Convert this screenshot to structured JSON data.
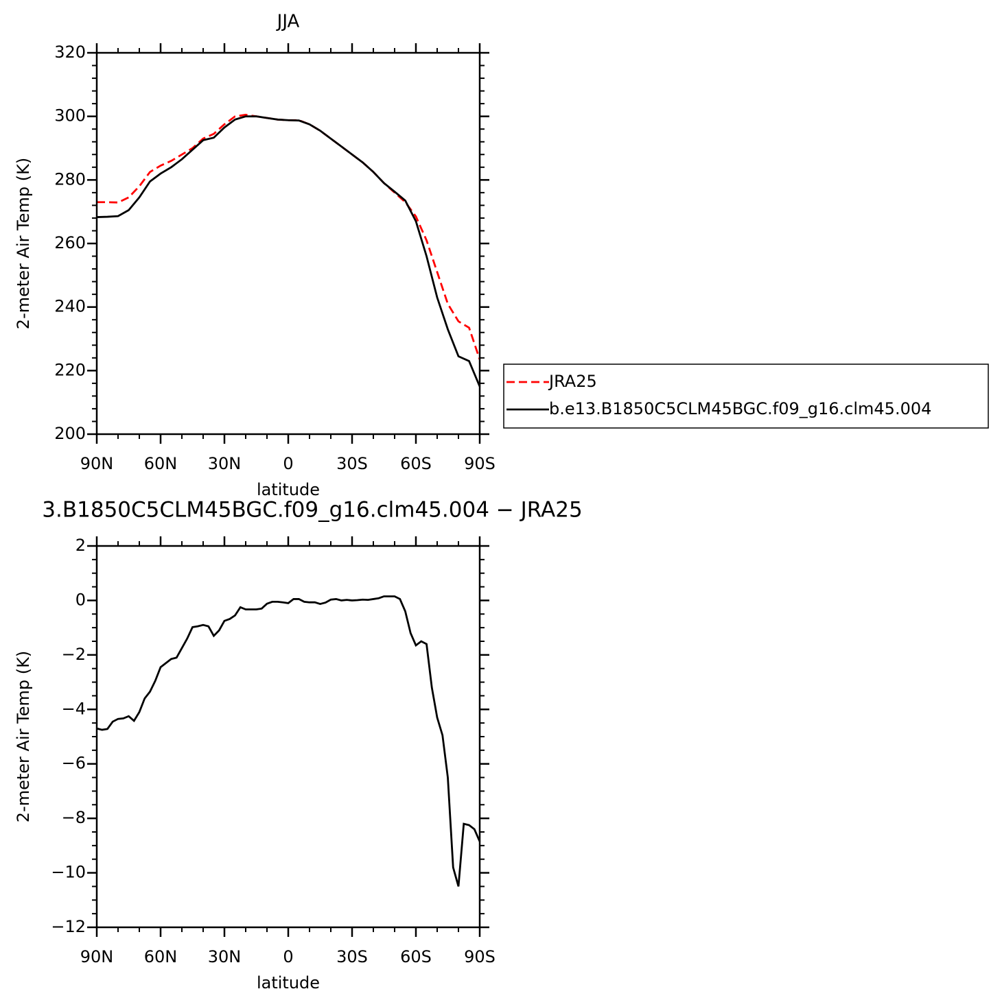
{
  "chart_data": [
    {
      "type": "line",
      "title": "JJA",
      "x_label": "latitude",
      "y_label": "2-meter Air Temp (K)",
      "x": [
        90,
        85,
        80,
        75,
        70,
        65,
        60,
        55,
        50,
        45,
        40,
        35,
        30,
        25,
        20,
        15,
        10,
        5,
        0,
        -5,
        -10,
        -15,
        -20,
        -25,
        -30,
        -35,
        -40,
        -45,
        -50,
        -55,
        -60,
        -65,
        -70,
        -75,
        -80,
        -85,
        -90
      ],
      "series": [
        {
          "name": "JRA25",
          "color": "#ff0000",
          "line_style": "dashed",
          "values": [
            273,
            273,
            272.9,
            274.5,
            278,
            282.5,
            284.5,
            286,
            288,
            290,
            293,
            294.5,
            297.5,
            300,
            300.5,
            300,
            299.5,
            299,
            298.8,
            298.8,
            297.5,
            295.5,
            293,
            290.5,
            288,
            285.5,
            282.5,
            279,
            276,
            273,
            268.5,
            261,
            251,
            241,
            235.5,
            233.5,
            223.5
          ]
        },
        {
          "name": "b.e13.B1850C5CLM45BGC.f09_g16.clm45.004",
          "color": "#000000",
          "line_style": "solid",
          "values": [
            268.3,
            268.4,
            268.6,
            270.5,
            274.5,
            279.5,
            282,
            284,
            286.5,
            289.5,
            292.5,
            293.3,
            296.5,
            299,
            300,
            300,
            299.5,
            299,
            298.8,
            298.7,
            297.5,
            295.5,
            293,
            290.5,
            288,
            285.5,
            282.5,
            279,
            276.3,
            273.5,
            267,
            256,
            243,
            233,
            224.5,
            223,
            215
          ]
        }
      ],
      "xlim": [
        90,
        -90
      ],
      "xticks": [
        {
          "value": 90,
          "label": "90N"
        },
        {
          "value": 60,
          "label": "60N"
        },
        {
          "value": 30,
          "label": "30N"
        },
        0,
        {
          "value": -30,
          "label": "30S"
        },
        {
          "value": -60,
          "label": "60S"
        },
        {
          "value": -90,
          "label": "90S"
        }
      ],
      "ylim": [
        200,
        320
      ],
      "yticks": [
        200,
        220,
        240,
        260,
        280,
        300,
        320
      ],
      "legend": "right"
    },
    {
      "type": "line",
      "title": "3.B1850C5CLM45BGC.f09_g16.clm45.004 − JRA25",
      "x_label": "latitude",
      "y_label": "2-meter Air Temp (K)",
      "x": [
        90,
        87.5,
        85,
        82.5,
        80,
        77.5,
        75,
        72.5,
        70,
        67.5,
        65,
        62.5,
        60,
        57.5,
        55,
        52.5,
        50,
        47.5,
        45,
        42.5,
        40,
        37.5,
        35,
        32.5,
        30,
        27.5,
        25,
        22.5,
        20,
        17.5,
        15,
        12.5,
        10,
        7.5,
        5,
        2.5,
        0,
        -2.5,
        -5,
        -7.5,
        -10,
        -12.5,
        -15,
        -17.5,
        -20,
        -22.5,
        -25,
        -27.5,
        -30,
        -32.5,
        -35,
        -37.5,
        -40,
        -42.5,
        -45,
        -47.5,
        -50,
        -52.5,
        -55,
        -57.5,
        -60,
        -62.5,
        -65,
        -67.5,
        -70,
        -72.5,
        -75,
        -77.5,
        -80,
        -82.5,
        -85,
        -87.5,
        -90
      ],
      "series": [
        {
          "color": "#000000",
          "line_style": "solid",
          "values": [
            -4.7,
            -4.75,
            -4.72,
            -4.45,
            -4.35,
            -4.33,
            -4.25,
            -4.42,
            -4.1,
            -3.6,
            -3.35,
            -2.95,
            -2.45,
            -2.3,
            -2.15,
            -2.1,
            -1.75,
            -1.4,
            -0.98,
            -0.95,
            -0.9,
            -0.95,
            -1.3,
            -1.1,
            -0.75,
            -0.68,
            -0.55,
            -0.25,
            -0.33,
            -0.33,
            -0.33,
            -0.3,
            -0.12,
            -0.05,
            -0.05,
            -0.07,
            -0.1,
            0.05,
            0.05,
            -0.05,
            -0.07,
            -0.07,
            -0.13,
            -0.08,
            0.03,
            0.05,
            0,
            0.02,
            0,
            0.01,
            0.03,
            0.02,
            0.05,
            0.08,
            0.15,
            0.15,
            0.15,
            0.05,
            -0.4,
            -1.2,
            -1.65,
            -1.5,
            -1.6,
            -3.2,
            -4.3,
            -4.95,
            -6.5,
            -9.8,
            -10.5,
            -8.2,
            -8.25,
            -8.4,
            -8.85
          ]
        }
      ],
      "xlim": [
        90,
        -90
      ],
      "xticks": [
        {
          "value": 90,
          "label": "90N"
        },
        {
          "value": 60,
          "label": "60N"
        },
        {
          "value": 30,
          "label": "30N"
        },
        0,
        {
          "value": -30,
          "label": "30S"
        },
        {
          "value": -60,
          "label": "60S"
        },
        {
          "value": -90,
          "label": "90S"
        }
      ],
      "ylim": [
        -12,
        2
      ],
      "yticks": [
        {
          "value": -12,
          "label": "−12"
        },
        {
          "value": -10,
          "label": "−10"
        },
        {
          "value": -8,
          "label": "−8"
        },
        {
          "value": -6,
          "label": "−6"
        },
        {
          "value": -4,
          "label": "−4"
        },
        {
          "value": -2,
          "label": "−2"
        },
        0,
        2
      ]
    }
  ]
}
